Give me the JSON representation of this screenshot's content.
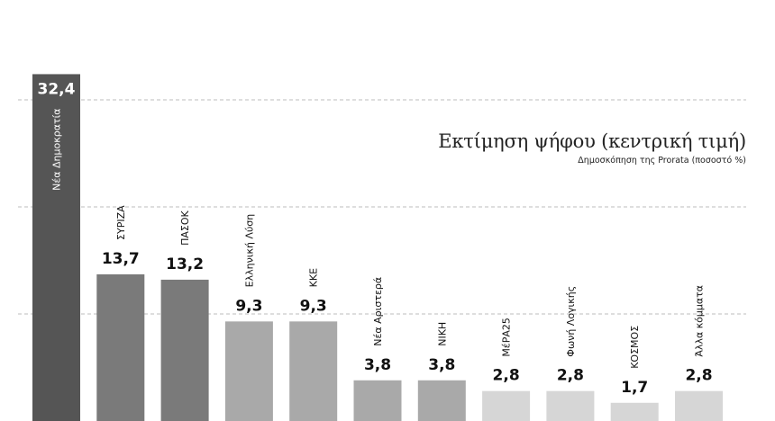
{
  "chart_data": {
    "type": "bar",
    "title": "Εκτίμηση ψήφου (κεντρική τιμή)",
    "subtitle": "Δημοσκόπηση της Prorata (ποσοστό %)",
    "categories": [
      "Νέα Δημοκρατία",
      "ΣΥΡΙΖΑ",
      "ΠΑΣΟΚ",
      "Ελληνική Λύση",
      "ΚΚΕ",
      "Νέα Αριστερά",
      "ΝΙΚΗ",
      "ΜέΡΑ25",
      "Φωνή Λογικής",
      "ΚΟΣΜΟΣ",
      "Άλλα κόμματα"
    ],
    "values": [
      32.4,
      13.7,
      13.2,
      9.3,
      9.3,
      3.8,
      3.8,
      2.8,
      2.8,
      1.7,
      2.8
    ],
    "value_labels": [
      "32,4",
      "13,7",
      "13,2",
      "9,3",
      "9,3",
      "3,8",
      "3,8",
      "2,8",
      "2,8",
      "1,7",
      "2,8"
    ],
    "bar_colors": [
      "#555555",
      "#7a7a7a",
      "#7a7a7a",
      "#a9a9a9",
      "#a9a9a9",
      "#a9a9a9",
      "#a9a9a9",
      "#d6d6d6",
      "#d6d6d6",
      "#d6d6d6",
      "#d6d6d6"
    ],
    "ylim": [
      0,
      34
    ],
    "gridlines": [
      10,
      20,
      30
    ],
    "grid": true,
    "xlabel": "",
    "ylabel": ""
  }
}
